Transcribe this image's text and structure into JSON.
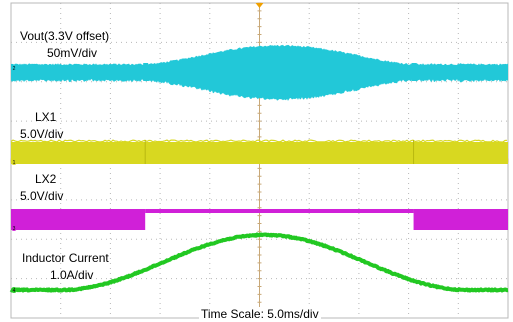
{
  "chart_data": {
    "type": "line",
    "title": "",
    "x_unit_label": "Time Scale: 5.0ms/div",
    "x_divisions": 10,
    "y_divisions": 8,
    "grid": true,
    "colors": {
      "background": "#ffffff",
      "grid": "#b8b8b8",
      "center_axis": "#c8a878",
      "trigger_marker": "#f0a000"
    },
    "channels": [
      {
        "id": "2",
        "name": "Vout(3.3V offset)",
        "scale": "50mV/div",
        "color": "#22c8d8",
        "description_values": {
          "ripple_envelope_baseline_divs": 0.35,
          "ripple_envelope_peak_divs": 1.3,
          "envelope_peak_time_div": 5.0,
          "disturbance_times_div": [
            2.7,
            8.1
          ]
        }
      },
      {
        "id": "1",
        "name": "LX1",
        "scale": "5.0V/div",
        "color": "#d8d820",
        "description_values": {
          "switching_amplitude_divs": 0.9,
          "transitions_div": [
            2.7,
            8.1
          ]
        }
      },
      {
        "id": "3",
        "name": "LX2",
        "scale": "5.0V/div",
        "color": "#d020d8",
        "description_values": {
          "switching_amplitude_divs": 0.7,
          "inactive_interval_div": [
            2.7,
            8.1
          ]
        }
      },
      {
        "id": "4",
        "name": "Inductor Current",
        "scale": "1.0A/div",
        "color": "#22c822",
        "description_values": {
          "baseline_divs": 0.0,
          "peak_divs": 1.4,
          "peak_time_div": 5.0,
          "rise_start_div": 1.0,
          "fall_end_div": 9.2
        }
      }
    ]
  }
}
